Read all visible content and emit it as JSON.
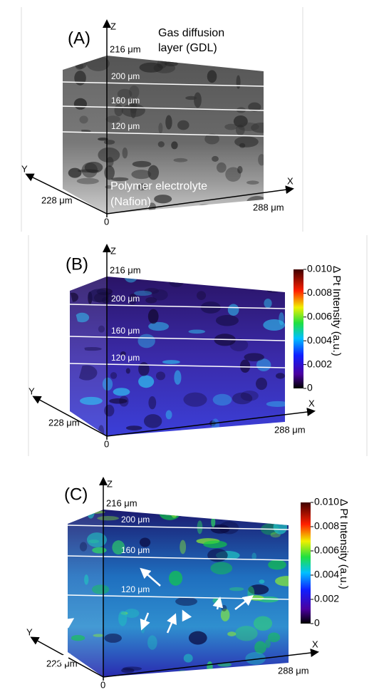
{
  "panels": [
    {
      "label": "(A)",
      "axes": {
        "z": "Z",
        "y": "Y",
        "x": "X",
        "origin": "0",
        "y_extent": "228 μm",
        "x_extent": "288 μm"
      },
      "depths": [
        "216 μm",
        "200 μm",
        "160 μm",
        "120 μm"
      ],
      "annotations": [
        "Gas diffusion",
        "layer (GDL)",
        "Polymer electrolyte",
        "(Nafion)"
      ]
    },
    {
      "label": "(B)",
      "axes": {
        "z": "Z",
        "y": "Y",
        "x": "X",
        "origin": "0",
        "y_extent": "228 μm",
        "x_extent": "288 μm"
      },
      "depths": [
        "216 μm",
        "200 μm",
        "160 μm",
        "120 μm"
      ],
      "colorbar": {
        "title": "Δ Pt Intensity (a.u.)",
        "ticks": [
          "0.010",
          "0.008",
          "0.006",
          "0.004",
          "0.002",
          "0"
        ]
      }
    },
    {
      "label": "(C)",
      "axes": {
        "z": "Z",
        "y": "Y",
        "x": "X",
        "origin": "0",
        "y_extent": "228 μm",
        "x_extent": "288 μm"
      },
      "depths": [
        "216 μm",
        "200 μm",
        "160 μm",
        "120 μm"
      ],
      "colorbar": {
        "title": "Δ Pt Intensity (a.u.)",
        "ticks": [
          "0.010",
          "0.008",
          "0.006",
          "0.004",
          "0.002",
          "0"
        ]
      }
    }
  ]
}
